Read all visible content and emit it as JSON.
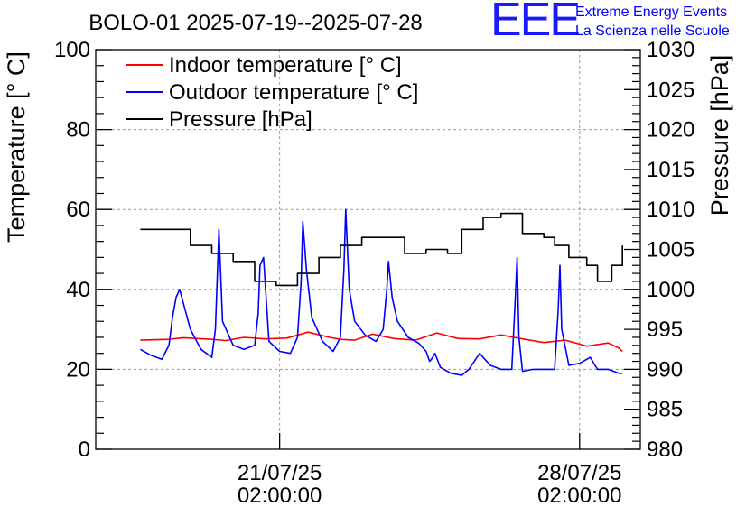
{
  "header": {
    "title": "BOLO-01 2025-07-19--2025-07-28",
    "logo_mark": "EEE",
    "logo_line1": "Extreme Energy Events",
    "logo_line2": "La Scienza nelle Scuole"
  },
  "colors": {
    "indoor": "#ff0000",
    "outdoor": "#0000ff",
    "pressure": "#000000",
    "logo": "#1a1aff"
  },
  "chart_data": {
    "type": "line",
    "title": "BOLO-01 2025-07-19--2025-07-28",
    "ylabel": "Temperature [° C]",
    "y2label": "Pressure [hPa]",
    "ylim": [
      0,
      100
    ],
    "y2lim": [
      980,
      1030
    ],
    "yticks": [
      "0",
      "20",
      "40",
      "60",
      "80",
      "100"
    ],
    "y2ticks": [
      "980",
      "985",
      "990",
      "995",
      "1000",
      "1005",
      "1010",
      "1015",
      "1020",
      "1025",
      "1030"
    ],
    "xlim": [
      "2025-07-16 19:00",
      "2025-07-29 12:00"
    ],
    "xticks": [
      {
        "x": "2025-07-21 02:00",
        "line1": "21/07/25",
        "line2": "02:00:00"
      },
      {
        "x": "2025-07-28 02:00",
        "line1": "28/07/25",
        "line2": "02:00:00"
      }
    ],
    "grid": true,
    "legend_position": "top-left",
    "series": [
      {
        "name": "Indoor temperature [° C]",
        "axis": "left",
        "color": "#ff0000",
        "x": [
          "2025-07-17 20:00",
          "2025-07-18 12:00",
          "2025-07-18 20:00",
          "2025-07-19 12:00",
          "2025-07-19 20:00",
          "2025-07-20 06:00",
          "2025-07-20 18:00",
          "2025-07-21 06:00",
          "2025-07-21 18:00",
          "2025-07-22 06:00",
          "2025-07-22 12:00",
          "2025-07-22 20:00",
          "2025-07-23 06:00",
          "2025-07-23 18:00",
          "2025-07-24 06:00",
          "2025-07-24 18:00",
          "2025-07-25 06:00",
          "2025-07-25 18:00",
          "2025-07-26 06:00",
          "2025-07-26 18:00",
          "2025-07-27 06:00",
          "2025-07-27 18:00",
          "2025-07-28 06:00",
          "2025-07-28 18:00",
          "2025-07-29 00:00",
          "2025-07-29 02:00"
        ],
        "values": [
          27.3,
          27.5,
          27.9,
          27.5,
          27.2,
          28.0,
          27.6,
          27.8,
          29.3,
          28.0,
          27.5,
          27.3,
          28.8,
          27.7,
          27.3,
          29.1,
          27.7,
          27.6,
          28.6,
          27.6,
          26.7,
          27.3,
          25.8,
          26.6,
          25.3,
          24.5
        ]
      },
      {
        "name": "Outdoor temperature [° C]",
        "axis": "left",
        "color": "#0000ff",
        "x": [
          "2025-07-17 20:00",
          "2025-07-18 02:00",
          "2025-07-18 08:00",
          "2025-07-18 12:00",
          "2025-07-18 14:00",
          "2025-07-18 16:00",
          "2025-07-18 18:00",
          "2025-07-19 00:00",
          "2025-07-19 06:00",
          "2025-07-19 12:00",
          "2025-07-19 14:00",
          "2025-07-19 15:00",
          "2025-07-19 16:00",
          "2025-07-19 18:00",
          "2025-07-20 00:00",
          "2025-07-20 06:00",
          "2025-07-20 12:00",
          "2025-07-20 14:00",
          "2025-07-20 15:00",
          "2025-07-20 17:00",
          "2025-07-20 20:00",
          "2025-07-21 02:00",
          "2025-07-21 08:00",
          "2025-07-21 12:00",
          "2025-07-21 14:00",
          "2025-07-21 15:00",
          "2025-07-21 17:00",
          "2025-07-21 20:00",
          "2025-07-22 02:00",
          "2025-07-22 08:00",
          "2025-07-22 12:00",
          "2025-07-22 14:00",
          "2025-07-22 15:00",
          "2025-07-22 17:00",
          "2025-07-22 20:00",
          "2025-07-23 02:00",
          "2025-07-23 08:00",
          "2025-07-23 12:00",
          "2025-07-23 14:00",
          "2025-07-23 15:00",
          "2025-07-23 17:00",
          "2025-07-23 20:00",
          "2025-07-24 02:00",
          "2025-07-24 08:00",
          "2025-07-24 12:00",
          "2025-07-24 14:00",
          "2025-07-24 15:00",
          "2025-07-24 17:00",
          "2025-07-24 20:00",
          "2025-07-25 02:00",
          "2025-07-25 08:00",
          "2025-07-25 12:00",
          "2025-07-25 18:00",
          "2025-07-26 00:00",
          "2025-07-26 06:00",
          "2025-07-26 12:00",
          "2025-07-26 14:00",
          "2025-07-26 15:00",
          "2025-07-26 16:00",
          "2025-07-26 18:00",
          "2025-07-27 00:00",
          "2025-07-27 06:00",
          "2025-07-27 12:00",
          "2025-07-27 14:00",
          "2025-07-27 15:00",
          "2025-07-27 16:00",
          "2025-07-27 20:00",
          "2025-07-28 02:00",
          "2025-07-28 08:00",
          "2025-07-28 12:00",
          "2025-07-28 18:00",
          "2025-07-29 00:00",
          "2025-07-29 02:00"
        ],
        "values": [
          25,
          23.5,
          22.5,
          26,
          33,
          38,
          40,
          30,
          25,
          23,
          30,
          42,
          55,
          32,
          26,
          25,
          26,
          34,
          46,
          48,
          27,
          24.5,
          24,
          28,
          42,
          57,
          45,
          33,
          27,
          24.5,
          28,
          45,
          60,
          40,
          32,
          28.5,
          27,
          30,
          40,
          47,
          38,
          32,
          28,
          26.5,
          24.5,
          22,
          22.5,
          24,
          20.5,
          19,
          18.5,
          20,
          24,
          21,
          20,
          20,
          38,
          48,
          28,
          19.5,
          20,
          20,
          20,
          35,
          46,
          30,
          21,
          21.5,
          23,
          20,
          20,
          19,
          19
        ]
      },
      {
        "name": "Pressure [hPa]",
        "axis": "right",
        "color": "#000000",
        "step": true,
        "x": [
          "2025-07-17 20:00",
          "2025-07-18 12:00",
          "2025-07-19 00:00",
          "2025-07-19 12:00",
          "2025-07-20 00:00",
          "2025-07-20 12:00",
          "2025-07-21 00:00",
          "2025-07-21 12:00",
          "2025-07-22 00:00",
          "2025-07-22 12:00",
          "2025-07-23 00:00",
          "2025-07-23 12:00",
          "2025-07-24 00:00",
          "2025-07-24 12:00",
          "2025-07-25 00:00",
          "2025-07-25 08:00",
          "2025-07-25 20:00",
          "2025-07-26 06:00",
          "2025-07-26 18:00",
          "2025-07-27 06:00",
          "2025-07-27 12:00",
          "2025-07-27 20:00",
          "2025-07-28 06:00",
          "2025-07-28 12:00",
          "2025-07-28 20:00",
          "2025-07-29 02:00"
        ],
        "values": [
          1007.5,
          1007.5,
          1005.5,
          1004.5,
          1003.5,
          1001,
          1000.5,
          1002,
          1004,
          1005.5,
          1006.5,
          1006.5,
          1004.5,
          1005,
          1004.5,
          1007.5,
          1009,
          1009.5,
          1007,
          1006.5,
          1005.5,
          1004,
          1003,
          1001,
          1003,
          1005.5
        ]
      }
    ]
  }
}
